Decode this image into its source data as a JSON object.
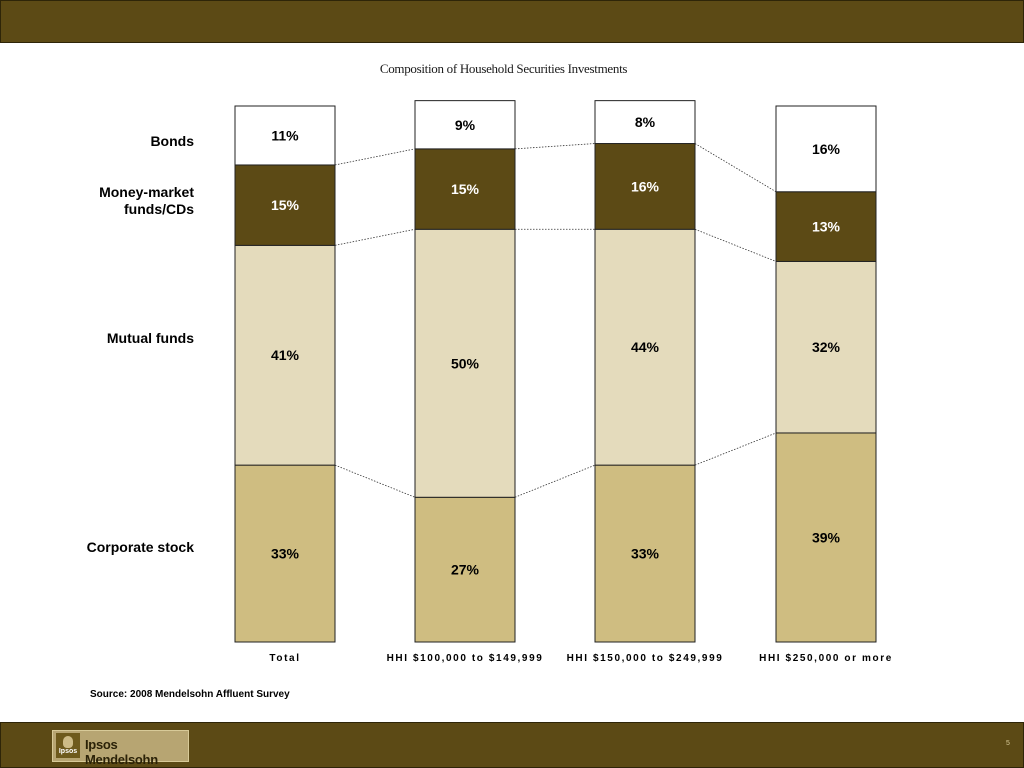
{
  "header": {},
  "chart_data": {
    "type": "bar",
    "stacked": true,
    "percent": true,
    "title": "Composition of Household Securities Investments",
    "categories": [
      "Total",
      "HHI $100,000 to $149,999",
      "HHI $150,000 to $249,999",
      "HHI $250,000 or more"
    ],
    "series": [
      {
        "name": "Corporate stock",
        "values": [
          33,
          27,
          33,
          39
        ],
        "color": "#cfbd81",
        "label_color": "#000000"
      },
      {
        "name": "Mutual funds",
        "values": [
          41,
          50,
          44,
          32
        ],
        "color": "#e4dbbc",
        "label_color": "#000000"
      },
      {
        "name": "Money-market funds/CDs",
        "values": [
          15,
          15,
          16,
          13
        ],
        "color": "#5c4a15",
        "label_color": "#ffffff"
      },
      {
        "name": "Bonds",
        "values": [
          11,
          9,
          8,
          16
        ],
        "color": "#ffffff",
        "label_color": "#000000"
      }
    ],
    "ylim": [
      0,
      100
    ],
    "connector_lines": true,
    "legend": "left"
  },
  "labels": {
    "bonds": "Bonds",
    "money_market_line1": "Money-market",
    "money_market_line2": "funds/CDs",
    "mutual_funds": "Mutual funds",
    "corporate_stock": "Corporate stock"
  },
  "source": "Source: 2008 Mendelsohn Affluent Survey",
  "footer": {
    "logo_mark": "Ipsos",
    "logo_text": "Ipsos Mendelsohn",
    "page_number": "5"
  },
  "colors": {
    "band": "#5c4a15",
    "logo_background": "#b7a572"
  }
}
